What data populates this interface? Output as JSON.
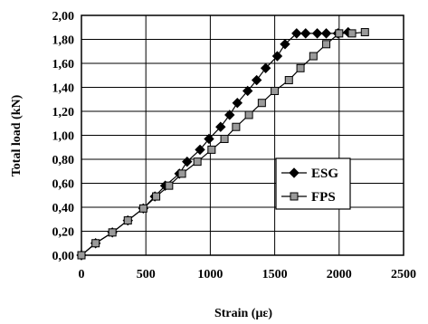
{
  "chart_data": {
    "type": "line",
    "xlabel": "Strain (με)",
    "ylabel": "Total load (kN)",
    "xlim": [
      0,
      2500
    ],
    "ylim": [
      0,
      2.0
    ],
    "x_ticks": [
      "0",
      "500",
      "1000",
      "1500",
      "2000",
      "2500"
    ],
    "y_ticks": [
      "0,00",
      "0,20",
      "0,40",
      "0,60",
      "0,80",
      "1,00",
      "1,20",
      "1,40",
      "1,60",
      "1,80",
      "2,00"
    ],
    "grid": true,
    "legend_position": "right-middle",
    "series": [
      {
        "name": "ESG",
        "marker": "diamond",
        "x": [
          0,
          110,
          240,
          360,
          480,
          570,
          650,
          760,
          820,
          920,
          990,
          1080,
          1150,
          1210,
          1290,
          1360,
          1430,
          1520,
          1580,
          1670,
          1740,
          1830,
          1900,
          1990,
          2070
        ],
        "y": [
          0.0,
          0.1,
          0.19,
          0.29,
          0.39,
          0.49,
          0.58,
          0.68,
          0.78,
          0.88,
          0.97,
          1.07,
          1.17,
          1.27,
          1.37,
          1.46,
          1.56,
          1.66,
          1.76,
          1.85,
          1.85,
          1.85,
          1.85,
          1.85,
          1.86
        ]
      },
      {
        "name": "FPS",
        "marker": "square",
        "x": [
          0,
          110,
          240,
          360,
          480,
          580,
          680,
          780,
          900,
          1010,
          1110,
          1200,
          1300,
          1400,
          1500,
          1610,
          1700,
          1800,
          1900,
          2000,
          2100,
          2200
        ],
        "y": [
          0.0,
          0.1,
          0.19,
          0.29,
          0.39,
          0.49,
          0.58,
          0.68,
          0.78,
          0.88,
          0.97,
          1.07,
          1.17,
          1.27,
          1.37,
          1.46,
          1.56,
          1.66,
          1.76,
          1.85,
          1.85,
          1.86
        ]
      }
    ]
  }
}
